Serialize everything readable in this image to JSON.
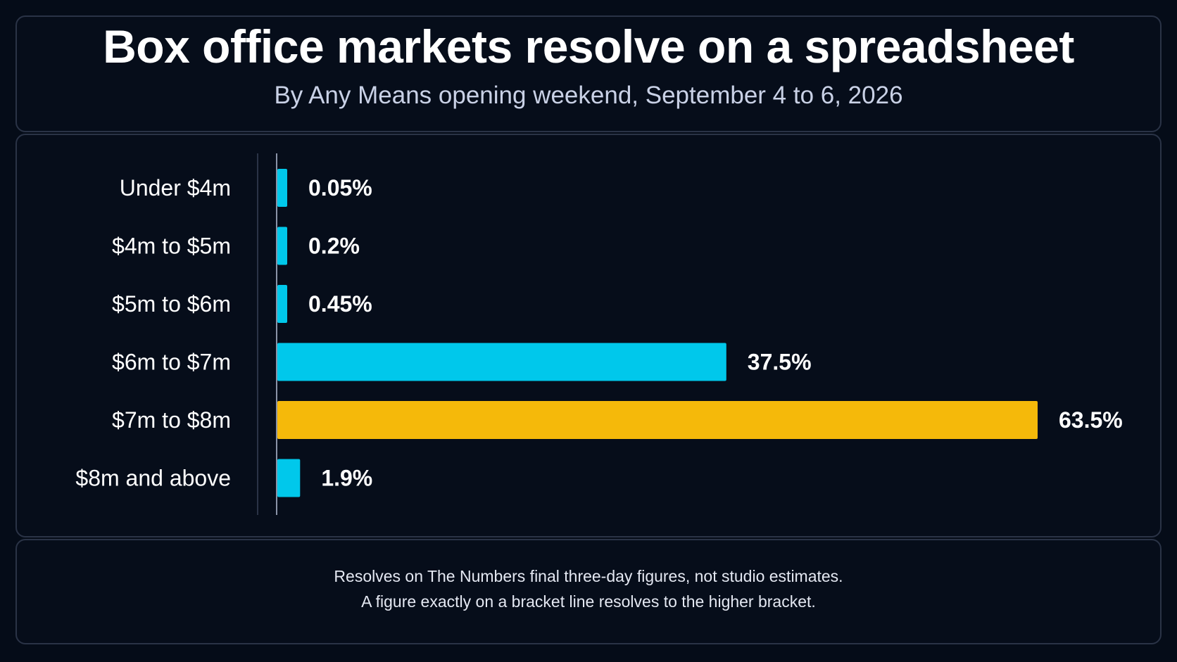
{
  "chart_data": {
    "type": "bar",
    "orientation": "horizontal",
    "title": "Box office markets resolve on a spreadsheet",
    "subtitle": "By Any Means opening weekend, September 4 to 6, 2026",
    "categories": [
      "Under $4m",
      "$4m to $5m",
      "$5m to $6m",
      "$6m to $7m",
      "$7m to $8m",
      "$8m and above"
    ],
    "values": [
      0.05,
      0.2,
      0.45,
      37.5,
      63.5,
      1.9
    ],
    "value_labels": [
      "0.05%",
      "0.2%",
      "0.45%",
      "37.5%",
      "63.5%",
      "1.9%"
    ],
    "unit": "%",
    "xlim": [
      0,
      63.5
    ],
    "grid": false,
    "legend": "none",
    "highlight_index": 4,
    "colors": {
      "default": "#00c8eb",
      "highlight": "#f5b90a",
      "axis": "#8a93a8",
      "label": "#ffffff"
    },
    "notes": [
      "Resolves on The Numbers final three-day figures, not studio estimates.",
      "A figure exactly on a bracket line resolves to the higher bracket."
    ]
  }
}
